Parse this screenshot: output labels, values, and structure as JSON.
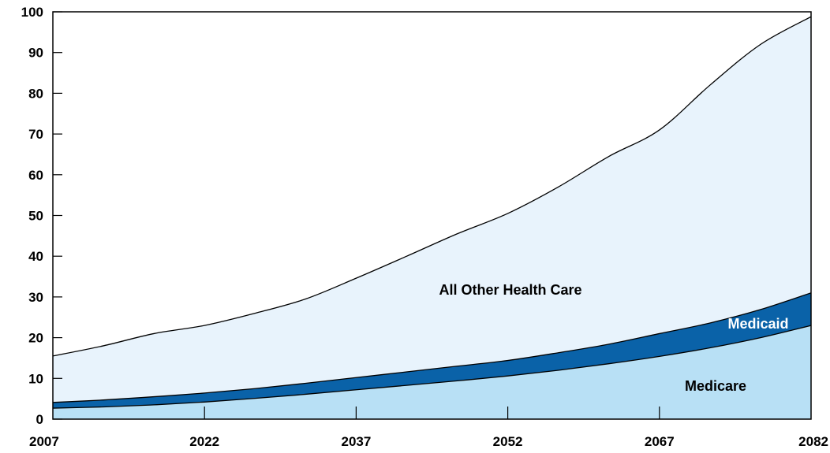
{
  "chart_data": {
    "type": "area",
    "stacked": true,
    "title": "",
    "xlabel": "",
    "ylabel": "",
    "xlim": [
      2007,
      2082
    ],
    "ylim": [
      0,
      100
    ],
    "x_ticks": [
      "2007",
      "2022",
      "2037",
      "2052",
      "2067",
      "2082"
    ],
    "y_ticks": [
      "0",
      "10",
      "20",
      "30",
      "40",
      "50",
      "60",
      "70",
      "80",
      "90",
      "100"
    ],
    "grid": false,
    "x": [
      2007,
      2012,
      2017,
      2022,
      2027,
      2032,
      2037,
      2042,
      2047,
      2052,
      2057,
      2062,
      2067,
      2072,
      2077,
      2082
    ],
    "series": [
      {
        "name": "Medicare",
        "color": "#b8e0f5",
        "values": [
          2.7,
          3.0,
          3.5,
          4.2,
          5.1,
          6.1,
          7.2,
          8.3,
          9.4,
          10.6,
          12.0,
          13.6,
          15.4,
          17.5,
          20.0,
          23.0
        ]
      },
      {
        "name": "Medicaid",
        "color": "#0a62a8",
        "values": [
          1.4,
          1.7,
          2.0,
          2.2,
          2.4,
          2.7,
          3.0,
          3.3,
          3.6,
          3.8,
          4.3,
          4.8,
          5.6,
          6.1,
          6.9,
          8.0
        ]
      },
      {
        "name": "All Other Health Care",
        "color": "#e8f3fc",
        "values": [
          11.4,
          13.3,
          15.5,
          16.6,
          18.5,
          20.7,
          24.4,
          28.4,
          32.5,
          36.1,
          40.7,
          46.1,
          50.0,
          58.4,
          65.1,
          67.8
        ]
      }
    ],
    "label_color_on_light": "#000000",
    "label_color_on_dark": "#ffffff",
    "line_color": "#000000"
  }
}
